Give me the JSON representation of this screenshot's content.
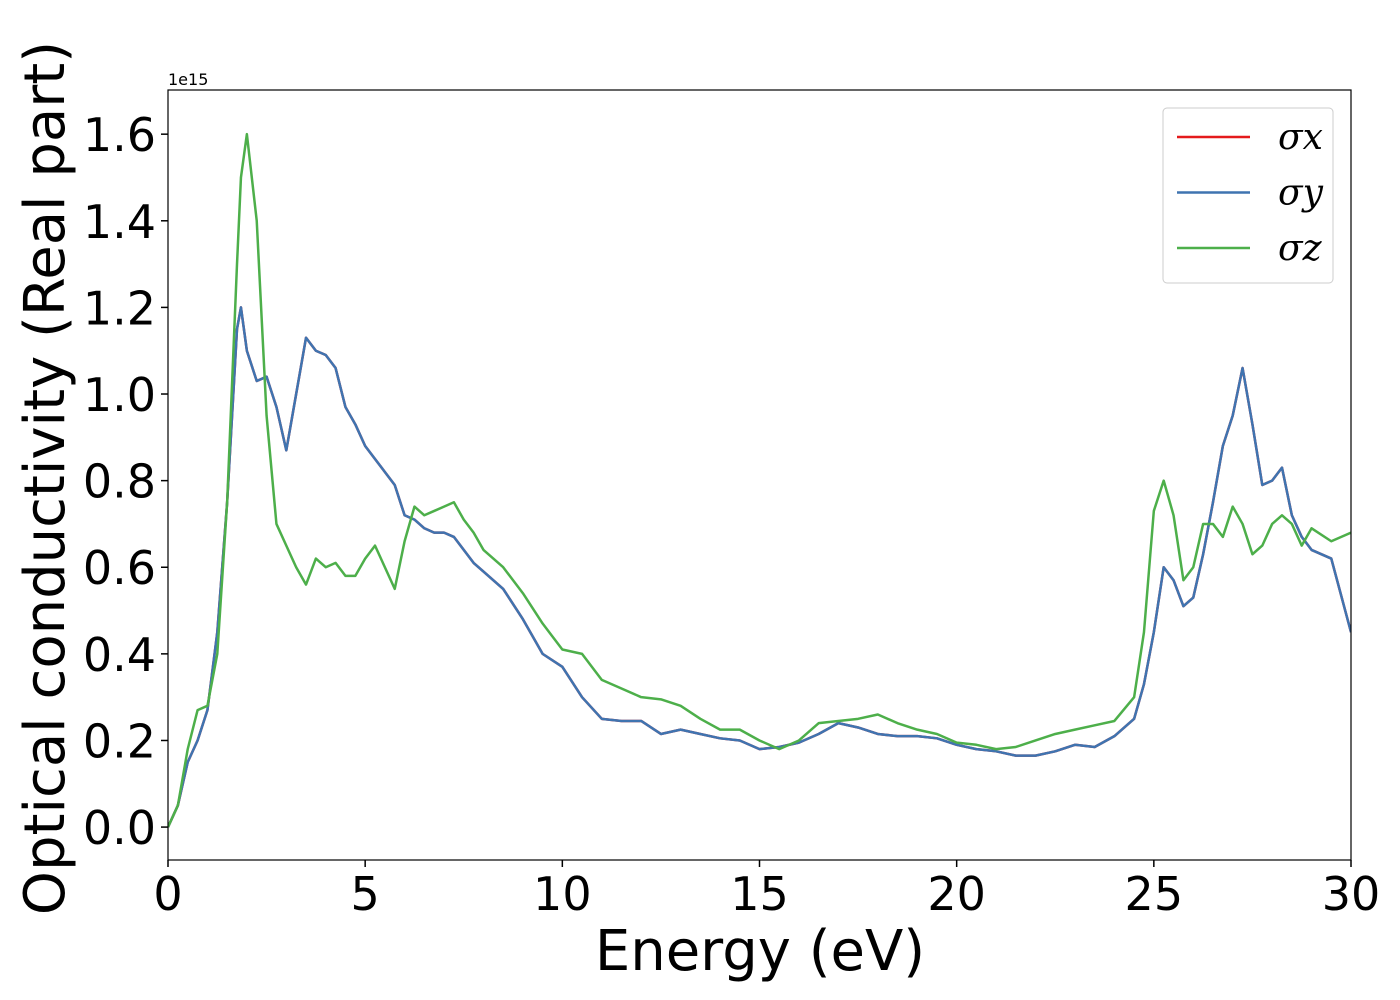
{
  "chart_data": {
    "type": "line",
    "xlabel": "Energy (eV)",
    "ylabel": "Optical conductivity (Real part)",
    "y_offset_label": "1e15",
    "x": [
      0,
      0.25,
      0.5,
      0.75,
      1,
      1.25,
      1.5,
      1.75,
      1.85,
      2,
      2.25,
      2.5,
      2.75,
      3,
      3.25,
      3.5,
      3.75,
      4,
      4.25,
      4.5,
      4.75,
      5,
      5.25,
      5.5,
      5.75,
      6,
      6.25,
      6.5,
      6.75,
      7,
      7.25,
      7.5,
      7.75,
      8,
      8.5,
      9,
      9.5,
      10,
      10.5,
      11,
      11.5,
      12,
      12.5,
      13,
      13.5,
      14,
      14.5,
      15,
      15.5,
      16,
      16.5,
      17,
      17.5,
      18,
      18.5,
      19,
      19.5,
      20,
      20.5,
      21,
      21.5,
      22,
      22.5,
      23,
      23.5,
      24,
      24.5,
      24.75,
      25,
      25.25,
      25.5,
      25.75,
      26,
      26.25,
      26.5,
      26.75,
      27,
      27.25,
      27.5,
      27.75,
      28,
      28.25,
      28.5,
      28.75,
      29,
      29.5,
      30
    ],
    "series": [
      {
        "name": "σx",
        "color": "#e41a1c",
        "values": [
          0,
          0.05,
          0.15,
          0.2,
          0.27,
          0.45,
          0.75,
          1.15,
          1.2,
          1.1,
          1.03,
          1.04,
          0.97,
          0.87,
          1.0,
          1.13,
          1.1,
          1.09,
          1.06,
          0.97,
          0.93,
          0.88,
          0.85,
          0.82,
          0.79,
          0.72,
          0.71,
          0.69,
          0.68,
          0.68,
          0.67,
          0.64,
          0.61,
          0.59,
          0.55,
          0.48,
          0.4,
          0.37,
          0.3,
          0.25,
          0.245,
          0.245,
          0.215,
          0.225,
          0.215,
          0.205,
          0.2,
          0.18,
          0.185,
          0.195,
          0.215,
          0.24,
          0.23,
          0.215,
          0.21,
          0.21,
          0.205,
          0.19,
          0.18,
          0.175,
          0.165,
          0.165,
          0.175,
          0.19,
          0.185,
          0.21,
          0.25,
          0.33,
          0.45,
          0.6,
          0.57,
          0.51,
          0.53,
          0.63,
          0.75,
          0.88,
          0.95,
          1.06,
          0.93,
          0.79,
          0.8,
          0.83,
          0.72,
          0.67,
          0.64,
          0.62,
          0.45
        ]
      },
      {
        "name": "σy",
        "color": "#3f74b0",
        "values": [
          0,
          0.05,
          0.15,
          0.2,
          0.27,
          0.45,
          0.75,
          1.15,
          1.2,
          1.1,
          1.03,
          1.04,
          0.97,
          0.87,
          1.0,
          1.13,
          1.1,
          1.09,
          1.06,
          0.97,
          0.93,
          0.88,
          0.85,
          0.82,
          0.79,
          0.72,
          0.71,
          0.69,
          0.68,
          0.68,
          0.67,
          0.64,
          0.61,
          0.59,
          0.55,
          0.48,
          0.4,
          0.37,
          0.3,
          0.25,
          0.245,
          0.245,
          0.215,
          0.225,
          0.215,
          0.205,
          0.2,
          0.18,
          0.185,
          0.195,
          0.215,
          0.24,
          0.23,
          0.215,
          0.21,
          0.21,
          0.205,
          0.19,
          0.18,
          0.175,
          0.165,
          0.165,
          0.175,
          0.19,
          0.185,
          0.21,
          0.25,
          0.33,
          0.45,
          0.6,
          0.57,
          0.51,
          0.53,
          0.63,
          0.75,
          0.88,
          0.95,
          1.06,
          0.93,
          0.79,
          0.8,
          0.83,
          0.72,
          0.67,
          0.64,
          0.62,
          0.45
        ]
      },
      {
        "name": "σz",
        "color": "#4daf4a",
        "values": [
          0,
          0.05,
          0.18,
          0.27,
          0.28,
          0.4,
          0.75,
          1.3,
          1.5,
          1.6,
          1.4,
          0.95,
          0.7,
          0.65,
          0.6,
          0.56,
          0.62,
          0.6,
          0.61,
          0.58,
          0.58,
          0.62,
          0.65,
          0.6,
          0.55,
          0.66,
          0.74,
          0.72,
          0.73,
          0.74,
          0.75,
          0.71,
          0.68,
          0.64,
          0.6,
          0.54,
          0.47,
          0.41,
          0.4,
          0.34,
          0.32,
          0.3,
          0.295,
          0.28,
          0.25,
          0.225,
          0.225,
          0.2,
          0.18,
          0.2,
          0.24,
          0.245,
          0.25,
          0.26,
          0.24,
          0.225,
          0.215,
          0.195,
          0.19,
          0.18,
          0.185,
          0.2,
          0.215,
          0.225,
          0.235,
          0.245,
          0.3,
          0.45,
          0.73,
          0.8,
          0.72,
          0.57,
          0.6,
          0.7,
          0.7,
          0.67,
          0.74,
          0.7,
          0.63,
          0.65,
          0.7,
          0.72,
          0.7,
          0.65,
          0.69,
          0.66,
          0.68
        ]
      }
    ],
    "xlim": [
      0,
      30
    ],
    "xticks": [
      0,
      5,
      10,
      15,
      20,
      25,
      30
    ],
    "ylim": [
      -0.076,
      1.702
    ],
    "yticks": [
      {
        "value": 0,
        "label": "0.0"
      },
      {
        "value": 0.2,
        "label": "0.2"
      },
      {
        "value": 0.4,
        "label": "0.4"
      },
      {
        "value": 0.6,
        "label": "0.6"
      },
      {
        "value": 0.8,
        "label": "0.8"
      },
      {
        "value": 1,
        "label": "1.0"
      },
      {
        "value": 1.2,
        "label": "1.2"
      },
      {
        "value": 1.4,
        "label": "1.4"
      },
      {
        "value": 1.6,
        "label": "1.6"
      }
    ],
    "grid": false,
    "legend": "upper right"
  }
}
